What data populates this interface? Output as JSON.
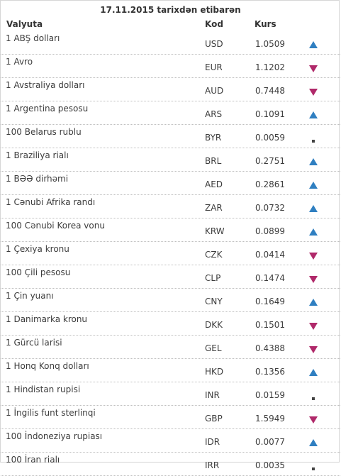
{
  "title": "17.11.2015 tarixdən etibarən",
  "columns": {
    "name": "Valyuta",
    "code": "Kod",
    "rate": "Kurs"
  },
  "colors": {
    "up": "#2f7fc1",
    "down": "#b0296a",
    "same": "#444444"
  },
  "rows": [
    {
      "name": "1 ABŞ dolları",
      "code": "USD",
      "rate": "1.0509",
      "trend": "up"
    },
    {
      "name": "1 Avro",
      "code": "EUR",
      "rate": "1.1202",
      "trend": "down"
    },
    {
      "name": "1 Avstraliya dolları",
      "code": "AUD",
      "rate": "0.7448",
      "trend": "down"
    },
    {
      "name": "1 Argentina pesosu",
      "code": "ARS",
      "rate": "0.1091",
      "trend": "up"
    },
    {
      "name": "100 Belarus rublu",
      "code": "BYR",
      "rate": "0.0059",
      "trend": "same"
    },
    {
      "name": "1 Braziliya rialı",
      "code": "BRL",
      "rate": "0.2751",
      "trend": "up"
    },
    {
      "name": "1 BƏƏ dirhəmi",
      "code": "AED",
      "rate": "0.2861",
      "trend": "up"
    },
    {
      "name": "1 Cənubi Afrika randı",
      "code": "ZAR",
      "rate": "0.0732",
      "trend": "up"
    },
    {
      "name": "100 Cənubi Korea vonu",
      "code": "KRW",
      "rate": "0.0899",
      "trend": "up"
    },
    {
      "name": "1 Çexiya kronu",
      "code": "CZK",
      "rate": "0.0414",
      "trend": "down"
    },
    {
      "name": "100 Çili pesosu",
      "code": "CLP",
      "rate": "0.1474",
      "trend": "down"
    },
    {
      "name": "1 Çin yuanı",
      "code": "CNY",
      "rate": "0.1649",
      "trend": "up"
    },
    {
      "name": "1 Danimarka kronu",
      "code": "DKK",
      "rate": "0.1501",
      "trend": "down"
    },
    {
      "name": "1 Gürcü larisi",
      "code": "GEL",
      "rate": "0.4388",
      "trend": "down"
    },
    {
      "name": "1 Honq Konq dolları",
      "code": "HKD",
      "rate": "0.1356",
      "trend": "up"
    },
    {
      "name": "1 Hindistan rupisi",
      "code": "INR",
      "rate": "0.0159",
      "trend": "same"
    },
    {
      "name": "1 İngilis funt sterlinqi",
      "code": "GBP",
      "rate": "1.5949",
      "trend": "down"
    },
    {
      "name": "100 İndoneziya rupiası",
      "code": "IDR",
      "rate": "0.0077",
      "trend": "up"
    },
    {
      "name": "100 İran rialı",
      "code": "IRR",
      "rate": "0.0035",
      "trend": "same"
    }
  ]
}
